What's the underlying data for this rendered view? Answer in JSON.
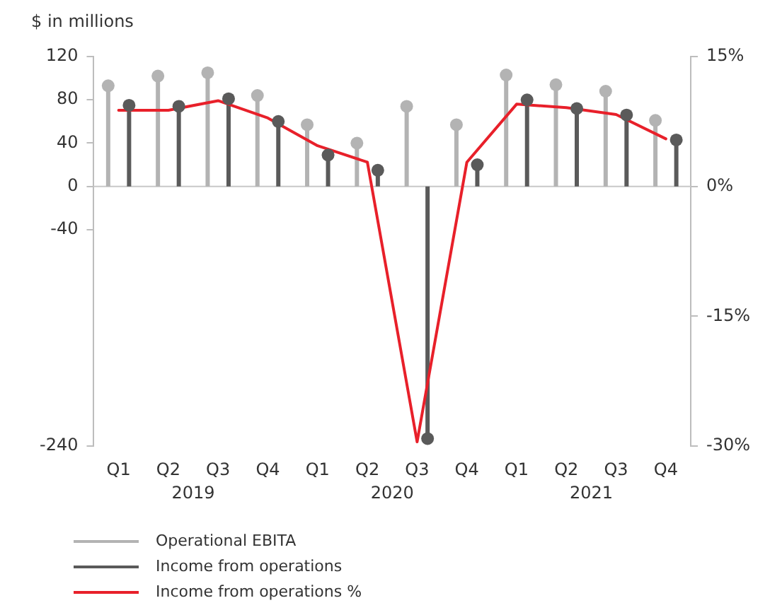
{
  "chart_data": {
    "type": "lollipop",
    "ylabel": "$ in millions",
    "categories": [
      "Q1",
      "Q2",
      "Q3",
      "Q4",
      "Q1",
      "Q2",
      "Q3",
      "Q4",
      "Q1",
      "Q2",
      "Q3",
      "Q4"
    ],
    "annotations": [
      "2019",
      "2020",
      "2021"
    ],
    "series": [
      {
        "name": "Operational EBITA",
        "color": "#b3b3b3",
        "values": [
          93,
          102,
          105,
          84,
          57,
          40,
          74,
          57,
          103,
          94,
          88,
          61
        ]
      },
      {
        "name": "Income from operations",
        "color": "#5a5a5a",
        "values": [
          75,
          74,
          81,
          60,
          29,
          15,
          -233,
          20,
          80,
          72,
          66,
          43
        ]
      },
      {
        "name": "Income from operations %",
        "type": "line",
        "axis": "y2",
        "marker": "none",
        "color": "#e8202a",
        "values": [
          8.8,
          8.8,
          9.9,
          7.9,
          4.7,
          2.8,
          -29.5,
          2.8,
          9.5,
          9.1,
          8.3,
          5.5
        ]
      }
    ],
    "ylim": [
      -240,
      120
    ],
    "yticks": [
      120,
      80,
      40,
      0,
      -40,
      -240
    ],
    "y2lim": [
      -30,
      15
    ],
    "y2ticks": [
      {
        "value": 15,
        "label": "15%"
      },
      {
        "value": 0,
        "label": "0%"
      },
      {
        "value": -15,
        "label": "-15%"
      },
      {
        "value": -30,
        "label": "-30%"
      }
    ],
    "ref_lines": [
      {
        "axis": "y",
        "value": 0,
        "color": "#c8c8c8"
      }
    ],
    "marker": "circle",
    "grid": false,
    "legend": "bottom"
  }
}
